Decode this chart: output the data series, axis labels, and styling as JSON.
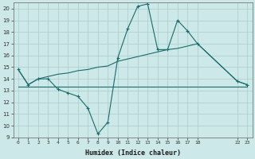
{
  "xlabel": "Humidex (Indice chaleur)",
  "bg_color": "#cce8e8",
  "grid_color": "#b0d0d0",
  "line_color": "#1a6b6b",
  "series1_x": [
    0,
    1,
    2,
    3,
    4,
    5,
    6,
    7,
    8,
    9,
    10,
    11,
    12,
    13,
    14,
    15,
    16,
    17,
    18,
    22,
    23
  ],
  "series1_y": [
    14.8,
    13.5,
    14.0,
    14.0,
    13.1,
    12.8,
    12.5,
    11.5,
    9.3,
    10.3,
    15.8,
    18.3,
    20.2,
    20.4,
    16.5,
    16.5,
    19.0,
    18.1,
    17.0,
    13.8,
    13.5
  ],
  "series2_x": [
    0,
    1,
    2,
    3,
    4,
    5,
    6,
    7,
    8,
    9,
    10,
    11,
    12,
    13,
    14,
    15,
    16,
    17,
    18,
    22,
    23
  ],
  "series2_y": [
    14.8,
    13.5,
    14.0,
    14.2,
    14.4,
    14.5,
    14.7,
    14.8,
    15.0,
    15.1,
    15.5,
    15.7,
    15.9,
    16.1,
    16.3,
    16.5,
    16.6,
    16.8,
    17.0,
    13.8,
    13.5
  ],
  "series3_x": [
    0,
    23
  ],
  "series3_y": [
    13.3,
    13.3
  ],
  "xtick_positions": [
    0,
    1,
    2,
    3,
    4,
    5,
    6,
    7,
    8,
    9,
    10,
    11,
    12,
    13,
    14,
    15,
    16,
    17,
    18,
    22,
    23
  ],
  "xtick_labels": [
    "0",
    "1",
    "2",
    "3",
    "4",
    "5",
    "6",
    "7",
    "8",
    "9",
    "10",
    "11",
    "12",
    "13",
    "14",
    "15",
    "16",
    "17",
    "18",
    "22",
    "23"
  ],
  "yticks": [
    9,
    10,
    11,
    12,
    13,
    14,
    15,
    16,
    17,
    18,
    19,
    20
  ],
  "xlim": [
    -0.5,
    23.5
  ],
  "ylim": [
    9,
    20.5
  ]
}
